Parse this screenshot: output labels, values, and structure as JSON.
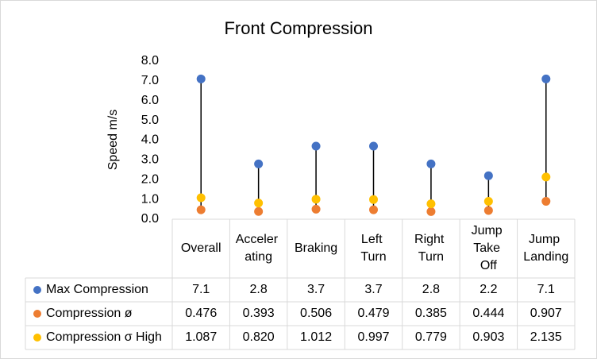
{
  "chart_data": {
    "type": "highlow",
    "title": "Front Compression",
    "y_label": "Speed m/s",
    "categories": [
      "Overall",
      "Acceler ating",
      "Braking",
      "Left Turn",
      "Right Turn",
      "Jump Take Off",
      "Jump Landing"
    ],
    "series": [
      {
        "name": "Max Compression",
        "color": "#4472c4",
        "values": [
          7.1,
          2.8,
          3.7,
          3.7,
          2.8,
          2.2,
          7.1
        ]
      },
      {
        "name": "Compression ø",
        "color": "#ed7d31",
        "values": [
          0.476,
          0.393,
          0.506,
          0.479,
          0.385,
          0.444,
          0.907
        ]
      },
      {
        "name": "Compression σ High",
        "color": "#ffc000",
        "values": [
          1.087,
          0.82,
          1.012,
          0.997,
          0.779,
          0.903,
          2.135
        ],
        "value_labels": [
          "1.087",
          "0.820",
          "1.012",
          "0.997",
          "0.779",
          "0.903",
          "2.135"
        ]
      }
    ],
    "ylim": [
      0,
      8
    ],
    "yticks": [
      {
        "value": 0,
        "label": "0.0"
      },
      {
        "value": 1,
        "label": "1.0"
      },
      {
        "value": 2,
        "label": "2.0"
      },
      {
        "value": 3,
        "label": "3.0"
      },
      {
        "value": 4,
        "label": "4.0"
      },
      {
        "value": 5,
        "label": "5.0"
      },
      {
        "value": 6,
        "label": "6.0"
      },
      {
        "value": 7,
        "label": "7.0"
      },
      {
        "value": 8,
        "label": "8.0"
      }
    ],
    "line_color": "#000000"
  }
}
